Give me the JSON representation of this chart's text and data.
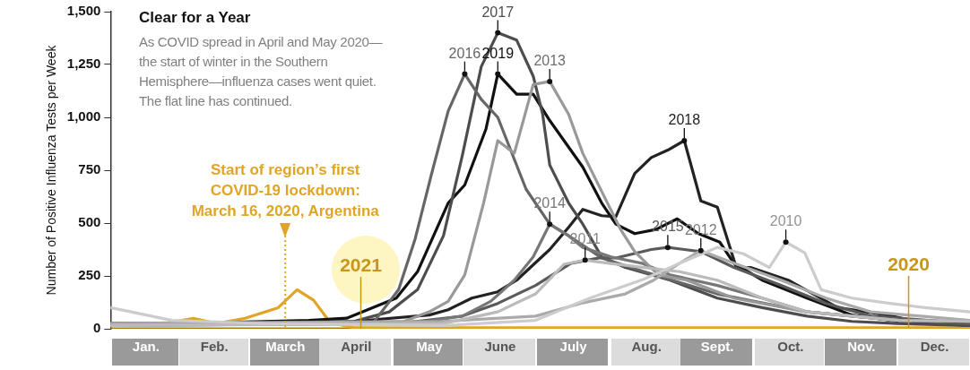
{
  "chart_data": {
    "type": "line",
    "title": "Clear for a Year",
    "subtitle": "As COVID spread in April and May 2020—the start of winter in the Southern Hemisphere—influenza cases went quiet. The flat line has continued.",
    "ylabel": "Number of Positive Influenza Tests per Week",
    "xlim": [
      "--01-01",
      "--12-31"
    ],
    "xticks": [
      {
        "value": "--01-16",
        "label": "Jan."
      },
      {
        "value": "--02-14",
        "label": "Feb."
      },
      {
        "value": "--03-16",
        "label": "March"
      },
      {
        "value": "--04-15",
        "label": "April"
      },
      {
        "value": "--05-16",
        "label": "May"
      },
      {
        "value": "--06-15",
        "label": "June"
      },
      {
        "value": "--07-16",
        "label": "July"
      },
      {
        "value": "--08-16",
        "label": "Aug."
      },
      {
        "value": "--09-15",
        "label": "Sept."
      },
      {
        "value": "--10-16",
        "label": "Oct."
      },
      {
        "value": "--11-15",
        "label": "Nov."
      },
      {
        "value": "--12-16",
        "label": "Dec."
      }
    ],
    "ylim": [
      0,
      1500
    ],
    "yticks": [
      0,
      250,
      500,
      750,
      {
        "value": 1000,
        "label": "1,000"
      },
      {
        "value": 1250,
        "label": "1,250"
      },
      {
        "value": 1500,
        "label": "1,500"
      }
    ],
    "grid": false,
    "legend": false,
    "marker": "none",
    "line_style": "solid",
    "ref_lines": [
      {
        "axis": "x",
        "value": "--03-16",
        "label": "Start of region’s first COVID-19 lockdown: March 16, 2020, Argentina",
        "color": "#e0a526",
        "line_style": "dotted"
      }
    ],
    "annotations": [
      {
        "text": "2020",
        "x": "--12-05",
        "y": 5
      },
      {
        "text": "2021",
        "x": "--04-17",
        "y": 0
      }
    ],
    "series": [
      {
        "name": "2010",
        "color": "#cccccc",
        "x": [
          "--01-01",
          "--01-27",
          "--03-07",
          "--05-22",
          "--06-30",
          "--07-23",
          "--08-15",
          "--08-30",
          "--09-15",
          "--09-26",
          "--10-07",
          "--10-14",
          "--10-22",
          "--10-29",
          "--11-11",
          "--11-27",
          "--12-12",
          "--12-31"
        ],
        "values": [
          100,
          40,
          25,
          15,
          40,
          145,
          235,
          310,
          385,
          355,
          290,
          410,
          360,
          185,
          145,
          120,
          100,
          80
        ]
      },
      {
        "name": "2011",
        "color": "#bbbbbb",
        "x": [
          "--01-01",
          "--05-22",
          "--06-14",
          "--06-30",
          "--07-12",
          "--07-21",
          "--07-31",
          "--08-15",
          "--08-30",
          "--09-15",
          "--10-04",
          "--10-23",
          "--12-01",
          "--12-31"
        ],
        "values": [
          15,
          25,
          80,
          165,
          305,
          325,
          310,
          290,
          270,
          230,
          145,
          80,
          40,
          35
        ]
      },
      {
        "name": "2012",
        "color": "#aaaaaa",
        "x": [
          "--01-01",
          "--05-22",
          "--06-30",
          "--07-19",
          "--08-07",
          "--08-19",
          "--08-30",
          "--09-08",
          "--09-22",
          "--10-12",
          "--10-31",
          "--11-19",
          "--12-31"
        ],
        "values": [
          25,
          35,
          60,
          120,
          165,
          230,
          310,
          370,
          310,
          230,
          145,
          80,
          40
        ]
      },
      {
        "name": "2013",
        "color": "#999999",
        "x": [
          "--01-01",
          "--05-03",
          "--05-16",
          "--05-24",
          "--05-31",
          "--06-08",
          "--06-14",
          "--06-21",
          "--06-29",
          "--07-06",
          "--07-14",
          "--07-20",
          "--07-28",
          "--08-05",
          "--08-11",
          "--08-21",
          "--09-02",
          "--09-22",
          "--10-23",
          "--12-01",
          "--12-31"
        ],
        "values": [
          15,
          25,
          80,
          130,
          255,
          595,
          890,
          830,
          1155,
          1170,
          1015,
          830,
          650,
          470,
          365,
          255,
          230,
          145,
          80,
          40,
          35
        ]
      },
      {
        "name": "2014",
        "color": "#777777",
        "x": [
          "--01-01",
          "--05-15",
          "--05-30",
          "--06-11",
          "--06-21",
          "--06-29",
          "--07-06",
          "--07-14",
          "--07-20",
          "--08-01",
          "--08-14",
          "--08-26",
          "--09-15",
          "--10-04",
          "--10-23",
          "--12-01",
          "--12-31"
        ],
        "values": [
          25,
          35,
          60,
          130,
          230,
          340,
          495,
          440,
          385,
          340,
          310,
          255,
          205,
          145,
          80,
          40,
          35
        ]
      },
      {
        "name": "2015",
        "color": "#5a5a5a",
        "x": [
          "--01-01",
          "--05-03",
          "--05-30",
          "--06-14",
          "--06-30",
          "--07-15",
          "--07-27",
          "--08-03",
          "--08-18",
          "--08-25",
          "--09-01",
          "--09-08",
          "--09-22",
          "--10-12",
          "--10-31",
          "--11-19",
          "--12-31"
        ],
        "values": [
          15,
          25,
          60,
          120,
          205,
          310,
          335,
          335,
          375,
          385,
          375,
          365,
          290,
          205,
          120,
          60,
          25
        ]
      },
      {
        "name": "2016",
        "color": "#666666",
        "x": [
          "--01-01",
          "--04-22",
          "--05-03",
          "--05-10",
          "--05-17",
          "--05-24",
          "--05-31",
          "--06-07",
          "--06-14",
          "--06-26",
          "--07-06",
          "--07-14",
          "--07-28",
          "--08-15",
          "--09-15",
          "--10-23",
          "--11-30",
          "--12-31"
        ],
        "values": [
          25,
          25,
          185,
          425,
          735,
          1030,
          1205,
          1085,
          1000,
          660,
          495,
          440,
          335,
          270,
          165,
          80,
          40,
          25
        ]
      },
      {
        "name": "2017",
        "color": "#4d4d4d",
        "x": [
          "--01-01",
          "--04-14",
          "--04-29",
          "--05-11",
          "--05-22",
          "--05-30",
          "--06-07",
          "--06-14",
          "--06-22",
          "--06-29",
          "--07-03",
          "--07-06",
          "--07-14",
          "--07-20",
          "--07-28",
          "--08-07",
          "--08-26",
          "--09-15",
          "--10-04",
          "--10-23",
          "--11-11",
          "--11-30",
          "--12-31"
        ],
        "values": [
          15,
          35,
          80,
          185,
          440,
          820,
          1240,
          1400,
          1365,
          1195,
          1015,
          775,
          595,
          495,
          340,
          290,
          230,
          145,
          100,
          60,
          35,
          25,
          15
        ]
      },
      {
        "name": "2018",
        "color": "#222222",
        "x": [
          "--01-01",
          "--04-14",
          "--05-16",
          "--05-24",
          "--06-03",
          "--06-14",
          "--06-22",
          "--07-06",
          "--07-14",
          "--07-20",
          "--07-28",
          "--08-03",
          "--08-11",
          "--08-18",
          "--08-25",
          "--09-01",
          "--09-08",
          "--09-15",
          "--09-23",
          "--09-29",
          "--10-15",
          "--11-05",
          "--11-26",
          "--12-06",
          "--12-31"
        ],
        "values": [
          25,
          35,
          65,
          90,
          145,
          175,
          230,
          375,
          480,
          565,
          535,
          530,
          735,
          810,
          845,
          890,
          605,
          575,
          290,
          290,
          230,
          100,
          65,
          40,
          25
        ]
      },
      {
        "name": "2019",
        "color": "#111111",
        "x": [
          "--01-01",
          "--03-26",
          "--04-11",
          "--05-02",
          "--05-11",
          "--05-24",
          "--05-31",
          "--06-09",
          "--06-14",
          "--06-22",
          "--06-29",
          "--07-06",
          "--07-20",
          "--07-28",
          "--08-03",
          "--08-11",
          "--08-20",
          "--08-29",
          "--09-07",
          "--09-16",
          "--09-22",
          "--10-04",
          "--10-23",
          "--11-11",
          "--12-01",
          "--12-31"
        ],
        "values": [
          15,
          40,
          50,
          145,
          270,
          595,
          680,
          945,
          1205,
          1110,
          1110,
          985,
          765,
          595,
          495,
          450,
          470,
          520,
          450,
          410,
          310,
          230,
          145,
          65,
          35,
          15
        ]
      },
      {
        "color": "#e0a526",
        "x": [
          "--01-01",
          "--01-19",
          "--02-05",
          "--02-15",
          "--02-27",
          "--03-13",
          "--03-21",
          "--03-28",
          "--04-04",
          "--04-14",
          "--05-22",
          "--12-31"
        ],
        "values": [
          25,
          15,
          50,
          25,
          50,
          100,
          185,
          135,
          30,
          5,
          5,
          5
        ]
      },
      {
        "color": "#a8770f",
        "x": [
          "--01-01",
          "--05-19"
        ],
        "values": [
          0,
          0
        ]
      }
    ]
  }
}
